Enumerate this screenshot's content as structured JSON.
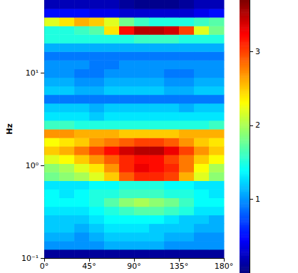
{
  "chart_data": {
    "type": "heatmap",
    "y_label": "Hz",
    "log": "y",
    "xlim": [
      0,
      180
    ],
    "xticks": [
      {
        "value": 0,
        "label": "0°"
      },
      {
        "value": 45,
        "label": "45°"
      },
      {
        "value": 90,
        "label": "90°"
      },
      {
        "value": 135,
        "label": "135°"
      },
      {
        "value": 180,
        "label": "180°"
      }
    ],
    "ylim": [
      0.1,
      61.7
    ],
    "yticks": [
      {
        "value": 0.1,
        "label": "10⁻¹"
      },
      {
        "value": 1,
        "label": "10⁰"
      },
      {
        "value": 10,
        "label": "10¹"
      }
    ],
    "x_edges": [
      0,
      15,
      30,
      45,
      60,
      75,
      90,
      105,
      120,
      135,
      150,
      165,
      180
    ],
    "y_edges": [
      0.1,
      0.124,
      0.153,
      0.19,
      0.236,
      0.292,
      0.361,
      0.448,
      0.555,
      0.687,
      0.851,
      1.05,
      1.31,
      1.62,
      2.0,
      2.48,
      3.08,
      3.81,
      4.72,
      5.85,
      7.24,
      8.97,
      11.1,
      13.8,
      17.1,
      21.1,
      26.2,
      32.4,
      40.2,
      49.8,
      61.7
    ],
    "cells": [
      [
        0.1,
        0.1,
        0.1,
        0.1,
        0.1,
        0.1,
        0.1,
        0.1,
        0.1,
        0.1,
        0.1,
        0.1
      ],
      [
        1.0,
        1.0,
        1.0,
        1.0,
        1.1,
        1.1,
        1.1,
        1.1,
        1.0,
        1.0,
        1.0,
        1.0
      ],
      [
        1.1,
        1.1,
        1.0,
        1.1,
        1.2,
        1.2,
        1.2,
        1.2,
        1.1,
        1.1,
        1.0,
        1.0
      ],
      [
        1.2,
        1.2,
        1.1,
        1.2,
        1.3,
        1.3,
        1.3,
        1.2,
        1.2,
        1.2,
        1.1,
        1.1
      ],
      [
        1.2,
        1.2,
        1.2,
        1.3,
        1.4,
        1.4,
        1.4,
        1.4,
        1.3,
        1.2,
        1.2,
        1.1
      ],
      [
        1.3,
        1.3,
        1.3,
        1.4,
        1.5,
        1.6,
        1.7,
        1.7,
        1.6,
        1.5,
        1.3,
        1.3
      ],
      [
        1.4,
        1.4,
        1.4,
        1.5,
        1.7,
        1.9,
        2.0,
        1.9,
        1.8,
        1.6,
        1.4,
        1.4
      ],
      [
        1.4,
        1.3,
        1.4,
        1.5,
        1.5,
        1.6,
        1.6,
        1.6,
        1.5,
        1.5,
        1.4,
        1.3
      ],
      [
        1.3,
        1.3,
        1.3,
        1.4,
        1.4,
        1.5,
        1.5,
        1.5,
        1.4,
        1.4,
        1.3,
        1.3
      ],
      [
        1.8,
        1.9,
        2.0,
        2.2,
        2.5,
        2.9,
        3.1,
        3.1,
        3.0,
        2.6,
        2.2,
        1.9
      ],
      [
        1.9,
        2.0,
        2.2,
        2.4,
        2.7,
        3.1,
        3.3,
        3.2,
        3.1,
        2.8,
        2.3,
        2.0
      ],
      [
        2.2,
        2.3,
        2.5,
        2.7,
        2.9,
        3.1,
        3.2,
        3.2,
        3.0,
        2.8,
        2.5,
        2.3
      ],
      [
        2.5,
        2.6,
        2.8,
        3.0,
        3.2,
        3.4,
        3.5,
        3.5,
        3.3,
        3.0,
        2.7,
        2.5
      ],
      [
        2.3,
        2.4,
        2.5,
        2.7,
        2.8,
        2.9,
        3.0,
        3.0,
        2.9,
        2.7,
        2.5,
        2.4
      ],
      [
        2.7,
        2.7,
        2.6,
        2.6,
        2.6,
        2.5,
        2.5,
        2.5,
        2.5,
        2.6,
        2.6,
        2.6
      ],
      [
        1.6,
        1.6,
        1.5,
        1.5,
        1.5,
        1.5,
        1.5,
        1.5,
        1.5,
        1.5,
        1.5,
        1.6
      ],
      [
        1.3,
        1.3,
        1.3,
        1.2,
        1.3,
        1.3,
        1.3,
        1.3,
        1.3,
        1.3,
        1.3,
        1.3
      ],
      [
        1.2,
        1.2,
        1.2,
        1.1,
        1.2,
        1.2,
        1.2,
        1.2,
        1.2,
        1.1,
        1.2,
        1.2
      ],
      [
        0.9,
        0.9,
        0.9,
        0.9,
        0.9,
        0.9,
        0.9,
        0.9,
        0.9,
        0.9,
        0.9,
        0.9
      ],
      [
        1.2,
        1.2,
        1.1,
        1.1,
        1.2,
        1.2,
        1.2,
        1.2,
        1.1,
        1.1,
        1.2,
        1.2
      ],
      [
        1.1,
        1.1,
        1.0,
        1.0,
        1.1,
        1.1,
        1.1,
        1.1,
        1.0,
        1.0,
        1.1,
        1.1
      ],
      [
        1.0,
        1.0,
        0.9,
        0.9,
        1.0,
        1.0,
        1.0,
        1.0,
        0.9,
        0.9,
        1.0,
        1.0
      ],
      [
        1.0,
        1.0,
        1.0,
        0.9,
        0.9,
        1.0,
        1.0,
        1.0,
        1.0,
        1.0,
        1.0,
        1.0
      ],
      [
        0.9,
        0.9,
        0.9,
        0.9,
        0.9,
        0.9,
        0.9,
        0.9,
        0.9,
        0.9,
        0.9,
        0.9
      ],
      [
        1.1,
        1.1,
        1.1,
        1.1,
        1.1,
        1.1,
        1.1,
        1.1,
        1.1,
        1.1,
        1.1,
        1.1
      ],
      [
        1.5,
        1.5,
        1.5,
        1.5,
        1.5,
        1.5,
        1.6,
        1.6,
        1.6,
        1.5,
        1.5,
        1.5
      ],
      [
        1.5,
        1.5,
        1.6,
        1.7,
        2.4,
        3.2,
        3.5,
        3.5,
        3.4,
        3.0,
        2.2,
        1.8
      ],
      [
        2.2,
        2.4,
        2.6,
        2.5,
        2.2,
        1.8,
        1.6,
        1.5,
        1.5,
        1.5,
        1.6,
        1.7
      ],
      [
        0.5,
        0.5,
        0.5,
        0.4,
        0.4,
        0.3,
        0.3,
        0.3,
        0.3,
        0.3,
        0.4,
        0.5
      ],
      [
        0.2,
        0.2,
        0.2,
        0.2,
        0.2,
        0.1,
        0.05,
        0.05,
        0.05,
        0.1,
        0.2,
        0.2
      ]
    ],
    "colorbar_range": [
      0,
      3.7
    ],
    "colorbar_ticks": [
      1,
      2,
      3
    ]
  }
}
